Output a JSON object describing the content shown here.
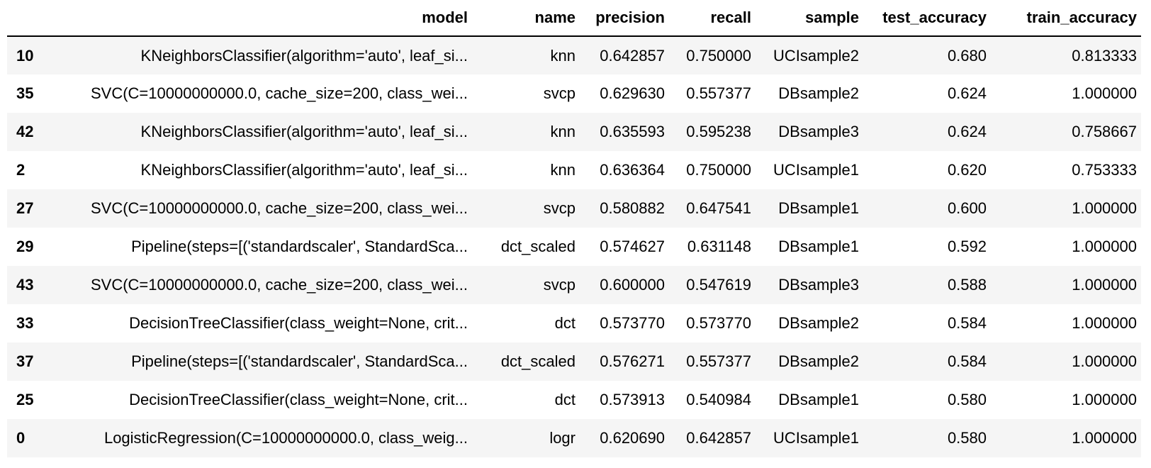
{
  "table": {
    "index_header": "",
    "columns": [
      "model",
      "name",
      "precision",
      "recall",
      "sample",
      "test_accuracy",
      "train_accuracy"
    ],
    "rows": [
      {
        "index": "10",
        "cells": [
          "KNeighborsClassifier(algorithm='auto', leaf_si...",
          "knn",
          "0.642857",
          "0.750000",
          "UCIsample2",
          "0.680",
          "0.813333"
        ]
      },
      {
        "index": "35",
        "cells": [
          "SVC(C=10000000000.0, cache_size=200, class_wei...",
          "svcp",
          "0.629630",
          "0.557377",
          "DBsample2",
          "0.624",
          "1.000000"
        ]
      },
      {
        "index": "42",
        "cells": [
          "KNeighborsClassifier(algorithm='auto', leaf_si...",
          "knn",
          "0.635593",
          "0.595238",
          "DBsample3",
          "0.624",
          "0.758667"
        ]
      },
      {
        "index": "2",
        "cells": [
          "KNeighborsClassifier(algorithm='auto', leaf_si...",
          "knn",
          "0.636364",
          "0.750000",
          "UCIsample1",
          "0.620",
          "0.753333"
        ]
      },
      {
        "index": "27",
        "cells": [
          "SVC(C=10000000000.0, cache_size=200, class_wei...",
          "svcp",
          "0.580882",
          "0.647541",
          "DBsample1",
          "0.600",
          "1.000000"
        ]
      },
      {
        "index": "29",
        "cells": [
          "Pipeline(steps=[('standardscaler', StandardSca...",
          "dct_scaled",
          "0.574627",
          "0.631148",
          "DBsample1",
          "0.592",
          "1.000000"
        ]
      },
      {
        "index": "43",
        "cells": [
          "SVC(C=10000000000.0, cache_size=200, class_wei...",
          "svcp",
          "0.600000",
          "0.547619",
          "DBsample3",
          "0.588",
          "1.000000"
        ]
      },
      {
        "index": "33",
        "cells": [
          "DecisionTreeClassifier(class_weight=None, crit...",
          "dct",
          "0.573770",
          "0.573770",
          "DBsample2",
          "0.584",
          "1.000000"
        ]
      },
      {
        "index": "37",
        "cells": [
          "Pipeline(steps=[('standardscaler', StandardSca...",
          "dct_scaled",
          "0.576271",
          "0.557377",
          "DBsample2",
          "0.584",
          "1.000000"
        ]
      },
      {
        "index": "25",
        "cells": [
          "DecisionTreeClassifier(class_weight=None, crit...",
          "dct",
          "0.573913",
          "0.540984",
          "DBsample1",
          "0.580",
          "1.000000"
        ]
      },
      {
        "index": "0",
        "cells": [
          "LogisticRegression(C=10000000000.0, class_weig...",
          "logr",
          "0.620690",
          "0.642857",
          "UCIsample1",
          "0.580",
          "1.000000"
        ]
      }
    ]
  }
}
